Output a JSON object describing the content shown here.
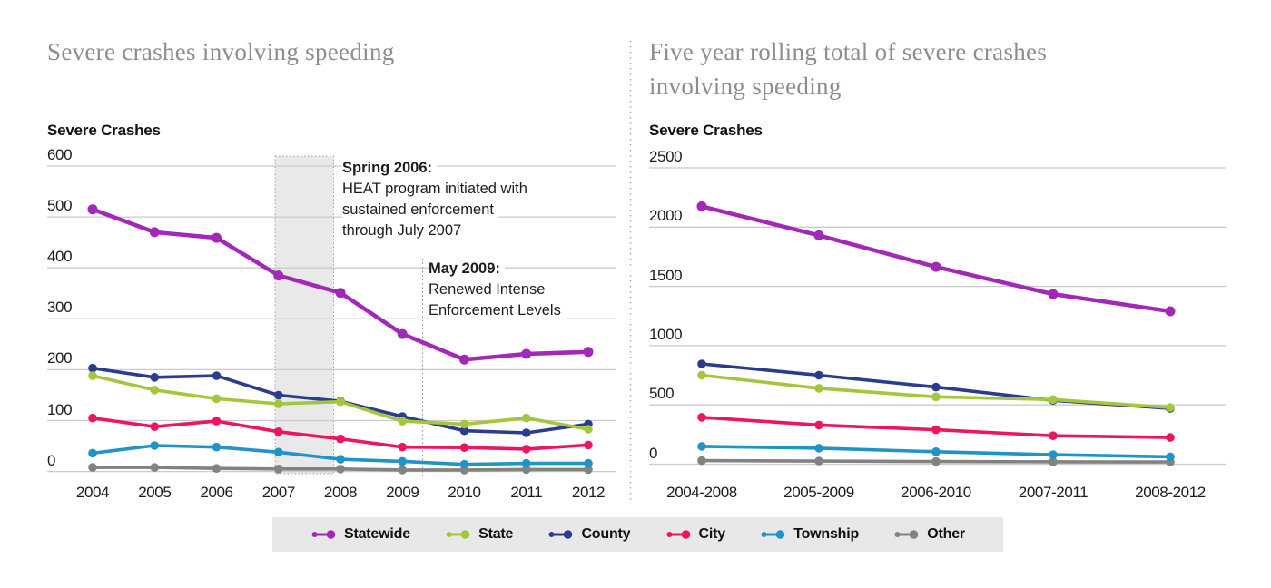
{
  "page": {
    "background": "#ffffff"
  },
  "colors": {
    "statewide": "#A228B7",
    "state": "#A4C63C",
    "county": "#2A3C8E",
    "city": "#EC1563",
    "township": "#2093C7",
    "other": "#828282",
    "gridline": "#cbcbcb",
    "band_fill": "#e9e9e9",
    "band_border": "#a0a0a0",
    "legend_bg": "#e8e8e8",
    "title_text": "#8d8d8d"
  },
  "legend": {
    "items": [
      {
        "label": "Statewide",
        "color": "#A228B7"
      },
      {
        "label": "State",
        "color": "#A4C63C"
      },
      {
        "label": "County",
        "color": "#2A3C8E"
      },
      {
        "label": "City",
        "color": "#EC1563"
      },
      {
        "label": "Township",
        "color": "#2093C7"
      },
      {
        "label": "Other",
        "color": "#828282"
      }
    ]
  },
  "chart_data": [
    {
      "type": "line",
      "title": "Severe crashes involving speeding",
      "ylabel": "Severe Crashes",
      "xlabel": "",
      "categories": [
        "2004",
        "2005",
        "2006",
        "2007",
        "2008",
        "2009",
        "2010",
        "2011",
        "2012"
      ],
      "ylim": [
        0,
        600
      ],
      "yticks": [
        600,
        500,
        400,
        300,
        200,
        100,
        0
      ],
      "grid": true,
      "legend_position": "bottom",
      "series": [
        {
          "name": "Statewide",
          "color": "#A228B7",
          "values": [
            515,
            470,
            459,
            385,
            351,
            270,
            220,
            231,
            235
          ]
        },
        {
          "name": "State",
          "color": "#A4C63C",
          "values": [
            188,
            160,
            143,
            133,
            137,
            99,
            93,
            105,
            83
          ]
        },
        {
          "name": "County",
          "color": "#2A3C8E",
          "values": [
            203,
            185,
            188,
            150,
            138,
            108,
            80,
            76,
            93
          ]
        },
        {
          "name": "City",
          "color": "#EC1563",
          "values": [
            105,
            88,
            99,
            78,
            64,
            48,
            47,
            44,
            52
          ]
        },
        {
          "name": "Township",
          "color": "#2093C7",
          "values": [
            36,
            51,
            48,
            38,
            24,
            20,
            14,
            16,
            16
          ]
        },
        {
          "name": "Other",
          "color": "#828282",
          "values": [
            8,
            8,
            6,
            5,
            5,
            3,
            3,
            4,
            4
          ]
        }
      ],
      "highlight_band": {
        "from_x": "2007",
        "to_x": "just before 2008",
        "style": "gray shaded, dotted border"
      },
      "annotations": [
        {
          "heading": "Spring 2006:",
          "lines": [
            "HEAT program initiated with",
            "sustained enforcement",
            "through July 2007"
          ]
        },
        {
          "heading": "May 2009:",
          "lines": [
            "Renewed Intense",
            "Enforcement Levels"
          ],
          "marker": "vertical dotted line at May 2009"
        }
      ]
    },
    {
      "type": "line",
      "title": "Five year rolling total of severe crashes involving speeding",
      "title_lines": [
        "Five year rolling total of severe crashes",
        "involving speeding"
      ],
      "ylabel": "Severe Crashes",
      "xlabel": "",
      "categories": [
        "2004-2008",
        "2005-2009",
        "2006-2010",
        "2007-2011",
        "2008-2012"
      ],
      "ylim": [
        0,
        2500
      ],
      "yticks": [
        2500,
        2000,
        1500,
        1000,
        500,
        0
      ],
      "grid": true,
      "legend_position": "bottom",
      "series": [
        {
          "name": "Statewide",
          "color": "#A228B7",
          "values": [
            2175,
            1930,
            1665,
            1435,
            1290
          ]
        },
        {
          "name": "State",
          "color": "#A4C63C",
          "values": [
            750,
            640,
            568,
            545,
            478
          ]
        },
        {
          "name": "County",
          "color": "#2A3C8E",
          "values": [
            846,
            750,
            650,
            538,
            470
          ]
        },
        {
          "name": "City",
          "color": "#EC1563",
          "values": [
            395,
            330,
            290,
            240,
            225
          ]
        },
        {
          "name": "Township",
          "color": "#2093C7",
          "values": [
            150,
            135,
            105,
            80,
            62
          ]
        },
        {
          "name": "Other",
          "color": "#828282",
          "values": [
            30,
            26,
            22,
            20,
            18
          ]
        }
      ]
    }
  ]
}
